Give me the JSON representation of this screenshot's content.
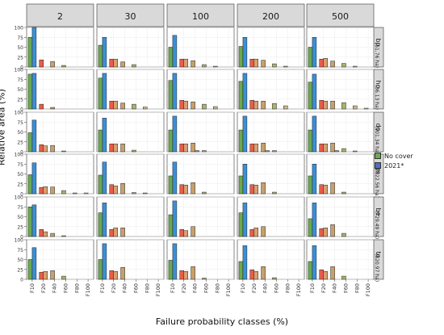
{
  "chart_data": {
    "type": "bar",
    "xlabel": "Failure probability classes (%)",
    "ylabel": "Relative area (%)",
    "categories": [
      "F10",
      "F20",
      "F40",
      "F60",
      "F80",
      "F100"
    ],
    "ylim": [
      0,
      100
    ],
    "yticks": [
      "0",
      "25",
      "50",
      "75",
      "100"
    ],
    "column_facets": [
      "2",
      "30",
      "100",
      "200",
      "500"
    ],
    "row_facets": [
      {
        "code": "bp",
        "area": "(51.76 ha)"
      },
      {
        "code": "ho",
        "area": "(36.13 ha)"
      },
      {
        "code": "do",
        "area": "(101.34 ha)"
      },
      {
        "code": "hm",
        "area": "(2822.56 ha)"
      },
      {
        "code": "be",
        "area": "(729.49 ha)"
      },
      {
        "code": "to",
        "area": "(520.97 ha)"
      }
    ],
    "series": [
      {
        "name": "No cover",
        "color": "#6aaa4e"
      },
      {
        "name": "2021*",
        "color": "#4a72c2"
      }
    ],
    "no_cover_colors": [
      "#6aaa4e",
      "#e85d4a",
      "#c8a06a",
      "#a7b46a",
      "#c9b98f",
      "#d9d2a8"
    ],
    "cover_colors": [
      "#3a8fd9",
      "#d9a070",
      "#d88a6a",
      "#c47a5a",
      "#cf9a7a",
      "#b8b08a"
    ],
    "grid": true,
    "legend_position": "right",
    "panels": [
      [
        {
          "nocover": [
            75,
            18,
            14,
            4,
            0,
            0
          ],
          "cover": [
            100,
            0,
            0,
            0,
            0,
            0
          ]
        },
        {
          "nocover": [
            55,
            20,
            13,
            6,
            0,
            0
          ],
          "cover": [
            75,
            20,
            0,
            0,
            0,
            0
          ]
        },
        {
          "nocover": [
            50,
            20,
            16,
            6,
            2,
            0
          ],
          "cover": [
            80,
            20,
            0,
            0,
            0,
            0
          ]
        },
        {
          "nocover": [
            52,
            20,
            17,
            8,
            2,
            0
          ],
          "cover": [
            75,
            20,
            0,
            0,
            0,
            0
          ]
        },
        {
          "nocover": [
            50,
            20,
            15,
            9,
            2,
            0
          ],
          "cover": [
            75,
            22,
            0,
            0,
            0,
            0
          ]
        }
      ],
      [
        {
          "nocover": [
            88,
            12,
            4,
            0,
            0,
            0
          ],
          "cover": [
            90,
            0,
            0,
            0,
            0,
            0
          ]
        },
        {
          "nocover": [
            78,
            20,
            15,
            12,
            5,
            0
          ],
          "cover": [
            90,
            20,
            0,
            0,
            0,
            0
          ]
        },
        {
          "nocover": [
            72,
            22,
            18,
            12,
            6,
            0
          ],
          "cover": [
            90,
            20,
            0,
            0,
            0,
            0
          ]
        },
        {
          "nocover": [
            70,
            22,
            20,
            14,
            8,
            0
          ],
          "cover": [
            90,
            20,
            0,
            0,
            0,
            0
          ]
        },
        {
          "nocover": [
            68,
            22,
            20,
            16,
            8,
            2
          ],
          "cover": [
            88,
            20,
            0,
            0,
            0,
            0
          ]
        }
      ],
      [
        {
          "nocover": [
            48,
            18,
            16,
            2,
            0,
            0
          ],
          "cover": [
            80,
            15,
            0,
            0,
            0,
            0
          ]
        },
        {
          "nocover": [
            55,
            20,
            20,
            4,
            0,
            0
          ],
          "cover": [
            85,
            20,
            0,
            0,
            0,
            0
          ]
        },
        {
          "nocover": [
            55,
            20,
            22,
            3,
            0,
            0
          ],
          "cover": [
            90,
            20,
            3,
            0,
            0,
            0
          ]
        },
        {
          "nocover": [
            55,
            20,
            22,
            3,
            0,
            0
          ],
          "cover": [
            90,
            20,
            3,
            0,
            0,
            0
          ]
        },
        {
          "nocover": [
            55,
            20,
            22,
            8,
            2,
            0
          ],
          "cover": [
            90,
            20,
            3,
            0,
            0,
            0
          ]
        }
      ],
      [
        {
          "nocover": [
            48,
            16,
            17,
            8,
            2,
            2
          ],
          "cover": [
            78,
            18,
            0,
            0,
            0,
            0
          ]
        },
        {
          "nocover": [
            47,
            23,
            26,
            3,
            2,
            0
          ],
          "cover": [
            80,
            20,
            0,
            0,
            0,
            0
          ]
        },
        {
          "nocover": [
            45,
            23,
            28,
            4,
            0,
            0
          ],
          "cover": [
            80,
            22,
            0,
            0,
            0,
            0
          ]
        },
        {
          "nocover": [
            45,
            23,
            28,
            4,
            0,
            0
          ],
          "cover": [
            75,
            22,
            0,
            0,
            0,
            0
          ]
        },
        {
          "nocover": [
            45,
            23,
            28,
            4,
            0,
            0
          ],
          "cover": [
            75,
            22,
            0,
            0,
            0,
            0
          ]
        }
      ],
      [
        {
          "nocover": [
            75,
            18,
            8,
            2,
            0,
            0
          ],
          "cover": [
            80,
            12,
            0,
            0,
            0,
            0
          ]
        },
        {
          "nocover": [
            60,
            18,
            22,
            0,
            0,
            0
          ],
          "cover": [
            85,
            22,
            0,
            0,
            0,
            0
          ]
        },
        {
          "nocover": [
            55,
            18,
            25,
            0,
            0,
            0
          ],
          "cover": [
            90,
            15,
            0,
            0,
            0,
            0
          ]
        },
        {
          "nocover": [
            60,
            18,
            25,
            0,
            0,
            0
          ],
          "cover": [
            85,
            22,
            0,
            0,
            0,
            0
          ]
        },
        {
          "nocover": [
            45,
            20,
            30,
            8,
            0,
            0
          ],
          "cover": [
            85,
            22,
            0,
            0,
            0,
            0
          ]
        }
      ],
      [
        {
          "nocover": [
            50,
            18,
            22,
            8,
            0,
            0
          ],
          "cover": [
            80,
            20,
            0,
            0,
            0,
            0
          ]
        },
        {
          "nocover": [
            50,
            22,
            30,
            0,
            0,
            0
          ],
          "cover": [
            90,
            20,
            0,
            0,
            0,
            0
          ]
        },
        {
          "nocover": [
            48,
            22,
            32,
            3,
            0,
            0
          ],
          "cover": [
            90,
            20,
            0,
            0,
            0,
            0
          ]
        },
        {
          "nocover": [
            45,
            24,
            32,
            4,
            0,
            0
          ],
          "cover": [
            85,
            20,
            0,
            0,
            0,
            0
          ]
        },
        {
          "nocover": [
            45,
            24,
            32,
            8,
            0,
            0
          ],
          "cover": [
            85,
            20,
            0,
            0,
            0,
            0
          ]
        }
      ]
    ]
  }
}
